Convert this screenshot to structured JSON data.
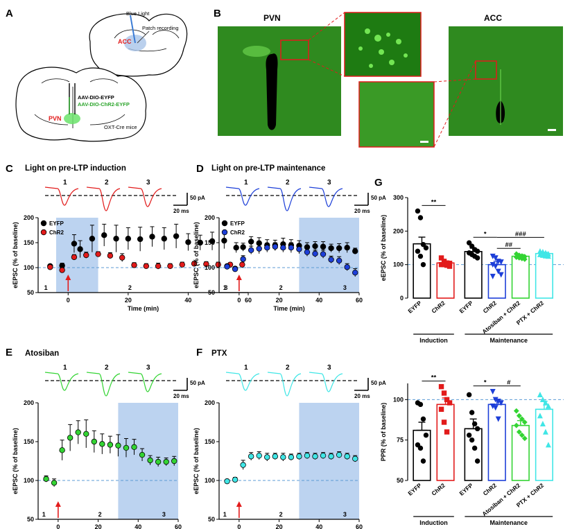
{
  "panel_letters": [
    "A",
    "B",
    "C",
    "D",
    "E",
    "F",
    "G"
  ],
  "panelA": {
    "blue_light": "Blue Light",
    "patch": "Patch recording",
    "acc": "ACC",
    "virus1": "AAV-DIO-EYFP",
    "virus2": "AAV-DIO-ChR2-EYFP",
    "pvn": "PVN",
    "mouse": "OXT-Cre mice"
  },
  "panelB": {
    "pvn_title": "PVN",
    "acc_title": "ACC"
  },
  "colors": {
    "eyfp": "#000000",
    "chr2_red": "#e21b1b",
    "chr2_blue": "#1d3fd8",
    "atosiban": "#33d433",
    "ptx": "#40e6e6",
    "shade": "#bcd3f0",
    "baseline": "#5b9bd5",
    "tissue": "#2f8a1f"
  },
  "common": {
    "xlabel": "Time (min)",
    "ylabel": "eEPSC (% of baseline)",
    "scale_pa": "50 pA",
    "scale_ms": "20 ms",
    "xticks": [
      "0",
      "20",
      "40",
      "60"
    ],
    "yticks": [
      "50",
      "100",
      "150",
      "200"
    ],
    "trace_labels": [
      "1",
      "2",
      "3"
    ]
  },
  "chart_data": [
    {
      "panel": "C",
      "type": "scatter",
      "title": "Light on pre-LTP induction",
      "xlabel": "Time (min)",
      "ylabel": "eEPSC (% of baseline)",
      "xlim": [
        -10,
        60
      ],
      "ylim": [
        50,
        200
      ],
      "light_on": [
        -4,
        10
      ],
      "epoch_markers": [
        "1",
        "2",
        "3"
      ],
      "series": [
        {
          "name": "EYFP",
          "color": "#000000",
          "x": [
            -6,
            -2,
            2,
            4,
            8,
            12,
            16,
            20,
            24,
            28,
            32,
            36,
            40,
            44,
            48,
            52,
            56
          ],
          "y": [
            103,
            104,
            148,
            137,
            158,
            165,
            158,
            158,
            157,
            162,
            158,
            163,
            151,
            150,
            153,
            154,
            140
          ],
          "err": [
            3,
            5,
            18,
            17,
            27,
            22,
            27,
            22,
            24,
            20,
            22,
            24,
            17,
            15,
            18,
            16,
            10
          ]
        },
        {
          "name": "ChR2",
          "color": "#e21b1b",
          "x": [
            -6,
            -2,
            2,
            6,
            10,
            14,
            18,
            22,
            26,
            30,
            34,
            38,
            42,
            46,
            50,
            54,
            58
          ],
          "y": [
            101,
            95,
            121,
            125,
            127,
            124,
            120,
            105,
            103,
            103,
            103,
            106,
            108,
            107,
            106,
            106,
            106
          ],
          "err": [
            3,
            4,
            5,
            6,
            5,
            6,
            8,
            5,
            5,
            6,
            5,
            5,
            4,
            5,
            5,
            4,
            4
          ]
        }
      ]
    },
    {
      "panel": "D",
      "type": "scatter",
      "title": "Light on pre-LTP maintenance",
      "xlabel": "Time (min)",
      "ylabel": "eEPSC (% of baseline)",
      "xlim": [
        -10,
        60
      ],
      "ylim": [
        50,
        200
      ],
      "light_on": [
        30,
        60
      ],
      "epoch_markers": [
        "1",
        "2",
        "3"
      ],
      "series": [
        {
          "name": "EYFP",
          "color": "#000000",
          "x": [
            -6,
            -2,
            2,
            6,
            10,
            14,
            18,
            22,
            26,
            30,
            34,
            38,
            42,
            46,
            50,
            54,
            58
          ],
          "y": [
            103,
            98,
            141,
            152,
            149,
            145,
            145,
            147,
            145,
            144,
            141,
            143,
            142,
            139,
            139,
            140,
            133
          ],
          "err": [
            3,
            4,
            8,
            10,
            11,
            11,
            10,
            12,
            11,
            10,
            9,
            9,
            10,
            8,
            9,
            10,
            6
          ]
        },
        {
          "name": "ChR2",
          "color": "#1d3fd8",
          "x": [
            -6,
            -2,
            2,
            6,
            10,
            14,
            18,
            22,
            26,
            30,
            34,
            38,
            42,
            46,
            50,
            54,
            58
          ],
          "y": [
            102,
            97,
            117,
            135,
            138,
            140,
            142,
            140,
            140,
            137,
            131,
            128,
            127,
            116,
            114,
            101,
            90
          ],
          "err": [
            3,
            4,
            7,
            8,
            10,
            9,
            8,
            9,
            10,
            9,
            8,
            7,
            8,
            7,
            8,
            7,
            8
          ]
        }
      ]
    },
    {
      "panel": "E",
      "type": "scatter",
      "title": "Atosiban",
      "xlabel": "Time (min)",
      "ylabel": "eEPSC (% of baseline)",
      "xlim": [
        -10,
        60
      ],
      "ylim": [
        50,
        200
      ],
      "light_on": [
        30,
        60
      ],
      "epoch_markers": [
        "1",
        "2",
        "3"
      ],
      "series": [
        {
          "name": "",
          "color": "#33d433",
          "x": [
            -6,
            -2,
            2,
            6,
            10,
            14,
            18,
            22,
            26,
            30,
            34,
            38,
            42,
            46,
            50,
            54,
            58
          ],
          "y": [
            102,
            97,
            139,
            155,
            162,
            160,
            150,
            147,
            146,
            145,
            142,
            143,
            133,
            126,
            124,
            124,
            125
          ],
          "err": [
            4,
            5,
            13,
            17,
            15,
            18,
            14,
            13,
            11,
            14,
            12,
            10,
            8,
            6,
            6,
            5,
            6
          ]
        }
      ]
    },
    {
      "panel": "F",
      "type": "scatter",
      "title": "PTX",
      "xlabel": "Time (min)",
      "ylabel": "eEPSC (% of baseline)",
      "xlim": [
        -10,
        60
      ],
      "ylim": [
        50,
        200
      ],
      "light_on": [
        30,
        60
      ],
      "epoch_markers": [
        "1",
        "2",
        "3"
      ],
      "series": [
        {
          "name": "",
          "color": "#40e6e6",
          "x": [
            -6,
            -2,
            2,
            6,
            10,
            14,
            18,
            22,
            26,
            30,
            34,
            38,
            42,
            46,
            50,
            54,
            58
          ],
          "y": [
            99,
            101,
            120,
            131,
            132,
            130,
            131,
            130,
            130,
            131,
            132,
            131,
            132,
            131,
            133,
            131,
            128
          ],
          "err": [
            2,
            3,
            6,
            5,
            5,
            5,
            4,
            5,
            4,
            4,
            4,
            4,
            4,
            4,
            4,
            4,
            4
          ]
        }
      ]
    },
    {
      "panel": "G-top",
      "type": "bar",
      "ylabel": "eEPSC (% of baseline)",
      "ylim": [
        0,
        300
      ],
      "yticks": [
        0,
        100,
        200,
        300
      ],
      "categories": [
        "EYFP",
        "ChR2",
        "EYFP",
        "ChR2",
        "Atosiban + ChR2",
        "PTX + ChR2"
      ],
      "groups": [
        {
          "label": "Induction",
          "span": [
            0,
            1
          ]
        },
        {
          "label": "Maintenance",
          "span": [
            2,
            5
          ]
        }
      ],
      "values": [
        162,
        105,
        139,
        100,
        125,
        133
      ],
      "err": [
        20,
        5,
        10,
        10,
        5,
        4
      ],
      "colors": [
        "#000000",
        "#e21b1b",
        "#000000",
        "#1d3fd8",
        "#33d433",
        "#40e6e6"
      ],
      "markers": [
        "circle",
        "square",
        "circle",
        "triangle-down",
        "diamond",
        "triangle-up"
      ],
      "points": [
        [
          260,
          240,
          160,
          150,
          140,
          125,
          100
        ],
        [
          120,
          110,
          105,
          104,
          100,
          100,
          98,
          95
        ],
        [
          165,
          155,
          145,
          140,
          135,
          130,
          125,
          120
        ],
        [
          125,
          120,
          110,
          108,
          100,
          95,
          80,
          70,
          65
        ],
        [
          132,
          128,
          126,
          124,
          122,
          120,
          118,
          116
        ],
        [
          140,
          138,
          135,
          132,
          130,
          128,
          126,
          125
        ]
      ],
      "significance": [
        {
          "from": 0,
          "to": 1,
          "label": "**"
        },
        {
          "from": 2,
          "to": 3,
          "label": "*"
        },
        {
          "from": 3,
          "to": 4,
          "label": "##"
        },
        {
          "from": 3,
          "to": 5,
          "label": "###"
        }
      ]
    },
    {
      "panel": "G-bottom",
      "type": "bar",
      "ylabel": "PPR (% of baseline)",
      "ylim": [
        50,
        110
      ],
      "yticks": [
        50,
        75,
        100
      ],
      "categories": [
        "EYFP",
        "ChR2",
        "EYFP",
        "ChR2",
        "Atosiban + ChR2",
        "PTX + ChR2"
      ],
      "groups": [
        {
          "label": "Induction",
          "span": [
            0,
            1
          ]
        },
        {
          "label": "Maintenance",
          "span": [
            2,
            5
          ]
        }
      ],
      "values": [
        81,
        97,
        82,
        97,
        84,
        94
      ],
      "err": [
        5,
        4,
        6,
        3,
        3,
        5
      ],
      "colors": [
        "#000000",
        "#e21b1b",
        "#000000",
        "#1d3fd8",
        "#33d433",
        "#40e6e6"
      ],
      "markers": [
        "circle",
        "square",
        "circle",
        "triangle-down",
        "diamond",
        "triangle-up"
      ],
      "points": [
        [
          98,
          97,
          88,
          78,
          72,
          70,
          62
        ],
        [
          108,
          104,
          100,
          98,
          94,
          86,
          80
        ],
        [
          103,
          92,
          85,
          82,
          78,
          75,
          70,
          62
        ],
        [
          105,
          100,
          99,
          98,
          96,
          95,
          88
        ],
        [
          93,
          90,
          88,
          86,
          84,
          80,
          78,
          76
        ],
        [
          103,
          100,
          98,
          96,
          90,
          85,
          80,
          72
        ]
      ],
      "significance": [
        {
          "from": 0,
          "to": 1,
          "label": "**"
        },
        {
          "from": 2,
          "to": 3,
          "label": "*"
        },
        {
          "from": 3,
          "to": 4,
          "label": "#"
        }
      ]
    }
  ]
}
